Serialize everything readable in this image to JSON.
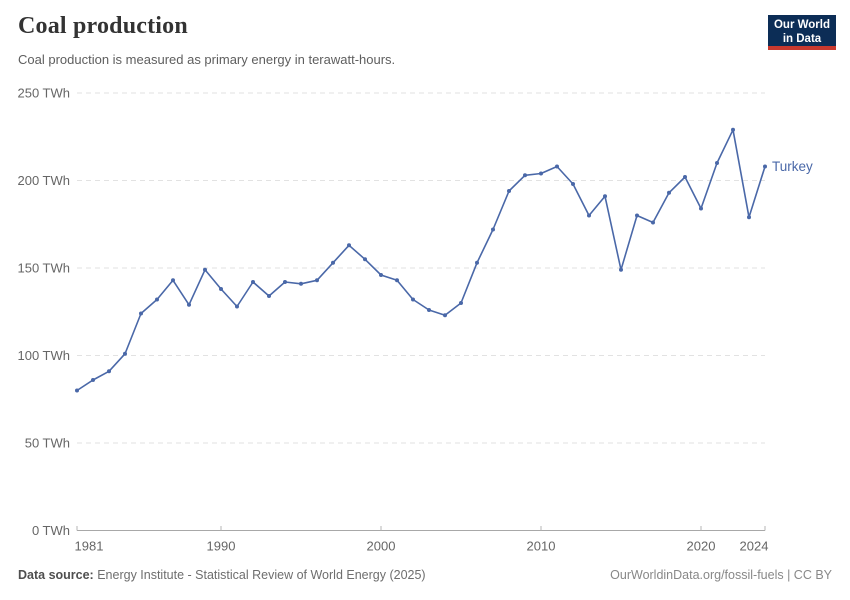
{
  "header": {
    "title": "Coal production",
    "subtitle": "Coal production is measured as primary energy in terawatt-hours."
  },
  "logo": {
    "line1": "Our World",
    "line2": "in Data"
  },
  "chart_data": {
    "type": "line",
    "title": "Coal production",
    "unit": "TWh",
    "xlim": [
      1981,
      2024
    ],
    "ylim": [
      0,
      250
    ],
    "x_ticks": [
      1981,
      1990,
      2000,
      2010,
      2020,
      2024
    ],
    "y_ticks": [
      0,
      50,
      100,
      150,
      200,
      250
    ],
    "y_tick_suffix": " TWh",
    "grid": "dashed-horizontal",
    "legend_position": "end-of-line",
    "series": [
      {
        "name": "Turkey",
        "color": "#4a68a8",
        "x": [
          1981,
          1982,
          1983,
          1984,
          1985,
          1986,
          1987,
          1988,
          1989,
          1990,
          1991,
          1992,
          1993,
          1994,
          1995,
          1996,
          1997,
          1998,
          1999,
          2000,
          2001,
          2002,
          2003,
          2004,
          2005,
          2006,
          2007,
          2008,
          2009,
          2010,
          2011,
          2012,
          2013,
          2014,
          2015,
          2016,
          2017,
          2018,
          2019,
          2020,
          2021,
          2022,
          2023,
          2024
        ],
        "values": [
          80,
          86,
          91,
          101,
          124,
          132,
          143,
          129,
          149,
          138,
          128,
          142,
          134,
          142,
          141,
          143,
          153,
          163,
          155,
          146,
          143,
          132,
          126,
          123,
          130,
          153,
          172,
          194,
          203,
          204,
          208,
          198,
          180,
          191,
          149,
          180,
          176,
          193,
          202,
          184,
          210,
          229,
          179,
          208
        ]
      }
    ]
  },
  "colors": {
    "line": "#4a68a8",
    "grid": "#e2e2e2",
    "axis": "#a8a8a8",
    "tick_label": "#666666"
  },
  "footer": {
    "source_label": "Data source:",
    "source_text": " Energy Institute - Statistical Review of World Energy (2025)",
    "attribution": "OurWorldinData.org/fossil-fuels | CC BY"
  }
}
